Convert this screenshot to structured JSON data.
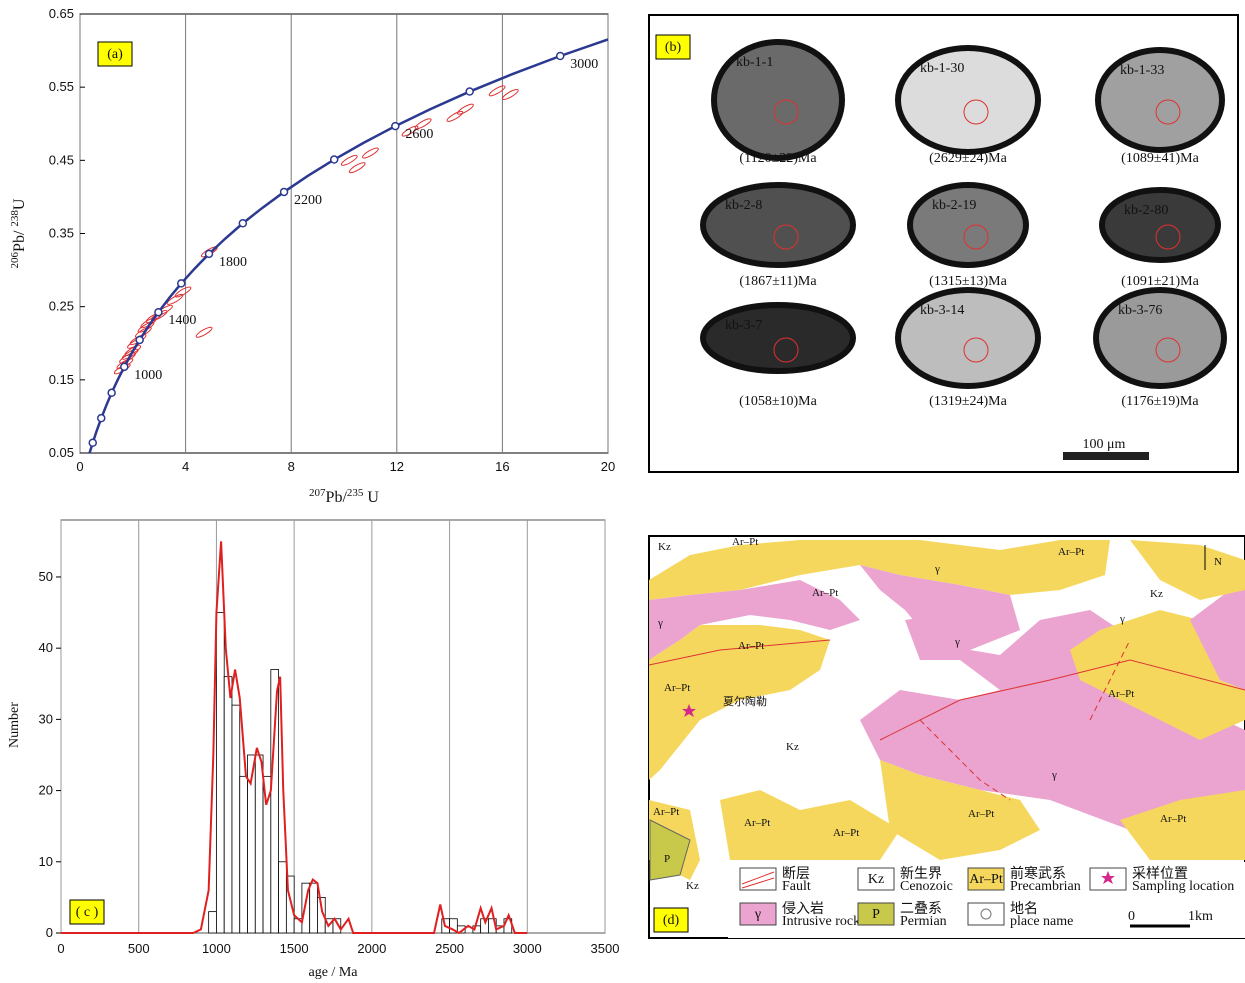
{
  "chart_data": [
    {
      "type": "concordia",
      "panel_label": "(a)",
      "x_label_parts": [
        "207",
        "Pb/",
        "235",
        " U"
      ],
      "y_label_parts": [
        "206",
        "Pb/ ",
        "238",
        "U"
      ],
      "xlim": [
        0,
        20
      ],
      "ylim": [
        0.05,
        0.65
      ],
      "xticks": [
        0,
        4,
        8,
        12,
        16,
        20
      ],
      "yticks": [
        0.05,
        0.15,
        0.25,
        0.35,
        0.45,
        0.55,
        0.65
      ],
      "grid": true,
      "curve": {
        "color": "#2b3990",
        "x": [
          0.3625,
          0.4827,
          0.6363,
          0.8056,
          0.9925,
          1.1988,
          1.4264,
          1.6774,
          1.9546,
          2.26,
          2.5975,
          2.97,
          3.3811,
          3.835,
          4.335,
          4.886,
          5.4958,
          6.168,
          6.9105,
          7.729,
          8.6331,
          9.629,
          10.73,
          11.944,
          13.284,
          14.76,
          16.395,
          18.19,
          20
        ],
        "values": [
          0.05,
          0.064,
          0.0807,
          0.0976,
          0.1147,
          0.1323,
          0.1498,
          0.1678,
          0.1861,
          0.2045,
          0.2234,
          0.2424,
          0.262,
          0.2818,
          0.3017,
          0.3222,
          0.3428,
          0.364,
          0.3851,
          0.4068,
          0.4288,
          0.4511,
          0.4737,
          0.4968,
          0.5202,
          0.544,
          0.5681,
          0.5926,
          0.6152
        ]
      },
      "markers": {
        "x": [
          0.4827,
          0.8056,
          1.1988,
          1.6774,
          2.26,
          2.97,
          3.835,
          4.886,
          6.168,
          7.729,
          9.629,
          11.944,
          14.76,
          18.19
        ],
        "values": [
          0.064,
          0.0976,
          0.1323,
          0.1678,
          0.2045,
          0.2424,
          0.2818,
          0.3222,
          0.364,
          0.4068,
          0.4511,
          0.4968,
          0.544,
          0.5926
        ],
        "labels": [
          null,
          null,
          null,
          1000,
          null,
          1400,
          null,
          1800,
          null,
          2200,
          null,
          2600,
          null,
          3000
        ]
      },
      "ellipses": {
        "color": "#e03030",
        "x": [
          1.6,
          1.7,
          1.8,
          1.9,
          2.0,
          2.1,
          2.2,
          2.4,
          2.5,
          2.6,
          2.8,
          3.0,
          3.2,
          3.6,
          3.9,
          4.7,
          4.9,
          10.2,
          10.5,
          11.0,
          12.5,
          13.0,
          14.2,
          14.6,
          15.8,
          16.3
        ],
        "values": [
          0.165,
          0.172,
          0.18,
          0.185,
          0.19,
          0.2,
          0.205,
          0.215,
          0.222,
          0.228,
          0.235,
          0.238,
          0.245,
          0.26,
          0.27,
          0.215,
          0.325,
          0.45,
          0.44,
          0.46,
          0.49,
          0.5,
          0.51,
          0.52,
          0.545,
          0.54
        ]
      }
    },
    {
      "type": "histogram",
      "panel_label": "( c )",
      "x_label": "age / Ma",
      "y_label": "Number",
      "xlim": [
        0,
        3500
      ],
      "ylim": [
        0,
        58
      ],
      "xticks": [
        0,
        500,
        1000,
        1500,
        2000,
        2500,
        3000,
        3500
      ],
      "yticks": [
        0,
        10,
        20,
        30,
        40,
        50
      ],
      "grid": true,
      "bins": [
        950,
        1000,
        1050,
        1100,
        1150,
        1200,
        1250,
        1300,
        1350,
        1400,
        1450,
        1500,
        1550,
        1600,
        1650,
        1700,
        1750,
        1800,
        1850,
        1900,
        1950,
        2000,
        2050,
        2100,
        2150,
        2200,
        2250,
        2300,
        2350,
        2400,
        2450,
        2500,
        2550,
        2600,
        2650,
        2700,
        2750,
        2800,
        2850,
        2900
      ],
      "values": [
        3,
        45,
        36,
        32,
        22,
        25,
        25,
        22,
        37,
        10,
        8,
        2,
        7,
        7,
        5,
        2,
        2,
        0,
        0,
        0,
        0,
        0,
        0,
        0,
        0,
        0,
        0,
        0,
        0,
        0,
        2,
        2,
        1,
        0,
        1,
        2,
        2,
        1,
        2
      ],
      "curve": {
        "color": "#e02020",
        "x": [
          0,
          850,
          900,
          950,
          980,
          1000,
          1030,
          1060,
          1090,
          1120,
          1150,
          1190,
          1220,
          1260,
          1290,
          1320,
          1350,
          1390,
          1410,
          1430,
          1460,
          1500,
          1550,
          1590,
          1620,
          1650,
          1680,
          1720,
          1760,
          1800,
          1850,
          1880,
          2400,
          2440,
          2470,
          2520,
          2560,
          2620,
          2660,
          2700,
          2730,
          2770,
          2800,
          2850,
          2880,
          2920,
          3000
        ],
        "values": [
          0,
          0,
          0.5,
          6,
          25,
          45,
          55,
          40,
          33,
          37,
          33,
          22,
          21,
          26,
          24,
          18,
          20,
          34,
          36,
          20,
          6,
          2.5,
          1.5,
          6,
          7.5,
          7,
          3,
          1,
          2,
          0.5,
          2,
          0,
          0,
          4,
          1,
          0.5,
          0,
          1,
          0.5,
          3.5,
          1.5,
          3.5,
          0.5,
          1,
          2.5,
          0,
          0
        ]
      }
    }
  ],
  "images": {
    "panel_label": "(b)",
    "scale": "100 μm",
    "grains": [
      {
        "id": "kb-1-1",
        "age": "(1120±22)Ma"
      },
      {
        "id": "kb-1-30",
        "age": "(2629±24)Ma"
      },
      {
        "id": "kb-1-33",
        "age": "(1089±41)Ma"
      },
      {
        "id": "kb-2-8",
        "age": "(1867±11)Ma"
      },
      {
        "id": "kb-2-19",
        "age": "(1315±13)Ma"
      },
      {
        "id": "kb-2-80",
        "age": "(1091±21)Ma"
      },
      {
        "id": "kb-3-7",
        "age": "(1058±10)Ma"
      },
      {
        "id": "kb-3-14",
        "age": "(1319±24)Ma"
      },
      {
        "id": "kb-3-76",
        "age": "(1176±19)Ma"
      }
    ]
  },
  "map": {
    "panel_label": "(d)",
    "labels": [
      "Kz",
      "Ar–Pt",
      "Ar–Pt",
      "γ",
      "Kz",
      "N",
      "γ",
      "Ar–Pt",
      "γ",
      "Ar–Pt",
      "Ar–Pt",
      "夏尔陶勒",
      "Kz",
      "γ",
      "Ar–Pt",
      "Ar–Pt",
      "Ar–Pt",
      "Ar–Pt",
      "Ar–Pt",
      "Ar–Pt",
      "P",
      "Kz",
      "γ"
    ],
    "legend": [
      {
        "cn": "断层",
        "en": "Fault"
      },
      {
        "symbol": "Kz",
        "cn": "新生界",
        "en": "Cenozoic"
      },
      {
        "symbol": "Ar–Pt",
        "cn": "前寒武系",
        "en": "Precambrian"
      },
      {
        "cn": "采样位置",
        "en": "Sampling location"
      },
      {
        "symbol": "γ",
        "cn": "侵入岩",
        "en": "Intrusive rock"
      },
      {
        "symbol": "P",
        "cn": "二叠系",
        "en": "Permian"
      },
      {
        "cn": "地名",
        "en": "place name"
      }
    ],
    "scale": [
      "0",
      "1km"
    ]
  }
}
